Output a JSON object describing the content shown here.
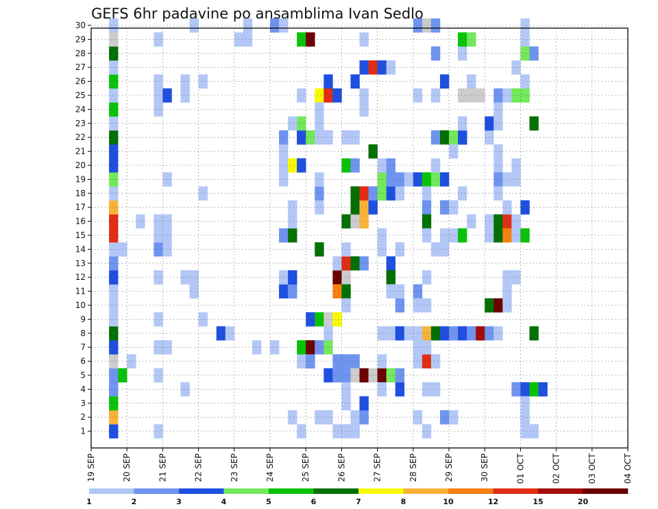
{
  "chart_data": {
    "type": "heatmap",
    "title": "GEFS 6hr padavine po ansamblima Ivan Sedlo",
    "xlabel": "",
    "ylabel": "",
    "x_tick_labels": [
      "19 SEP",
      "20 SEP",
      "21 SEP",
      "22 SEP",
      "23 SEP",
      "24 SEP",
      "25 SEP",
      "26 SEP",
      "27 SEP",
      "28 SEP",
      "29 SEP",
      "30 SEP",
      "01 OCT",
      "02 OCT",
      "03 OCT",
      "04 OCT"
    ],
    "y_tick_labels": [
      "1",
      "2",
      "3",
      "4",
      "5",
      "6",
      "7",
      "8",
      "9",
      "10",
      "11",
      "12",
      "13",
      "14",
      "15",
      "16",
      "17",
      "18",
      "19",
      "20",
      "21",
      "22",
      "23",
      "24",
      "25",
      "26",
      "27",
      "28",
      "29",
      "30"
    ],
    "grid": true,
    "legend": "colorbar-bottom",
    "x_columns": 60,
    "y_rows": 30,
    "colorbar": {
      "labels": [
        "1",
        "2",
        "3",
        "4",
        "5",
        "6",
        "7",
        "8",
        "10",
        "12",
        "15",
        "20"
      ],
      "colors": [
        "#b3c7f7",
        "#6f94ef",
        "#1e4fe0",
        "#72e85a",
        "#08c208",
        "#047004",
        "#f8f800",
        "#f8b23a",
        "#f88011",
        "#e02d14",
        "#a50b0b",
        "#6b0000"
      ]
    },
    "cells": [
      [
        2,
        1,
        3
      ],
      [
        2,
        2,
        8
      ],
      [
        2,
        3,
        5
      ],
      [
        2,
        4,
        2
      ],
      [
        2,
        5,
        2
      ],
      [
        3,
        5,
        5
      ],
      [
        2,
        6,
        13
      ],
      [
        2,
        7,
        3
      ],
      [
        2,
        8,
        6
      ],
      [
        2,
        9,
        1
      ],
      [
        2,
        10,
        1
      ],
      [
        2,
        11,
        1
      ],
      [
        2,
        12,
        3
      ],
      [
        2,
        13,
        2
      ],
      [
        2,
        14,
        1
      ],
      [
        3,
        14,
        1
      ],
      [
        2,
        15,
        10
      ],
      [
        2,
        16,
        10
      ],
      [
        2,
        17,
        8
      ],
      [
        2,
        18,
        1
      ],
      [
        2,
        19,
        4
      ],
      [
        2,
        20,
        3
      ],
      [
        2,
        21,
        3
      ],
      [
        2,
        22,
        6
      ],
      [
        2,
        23,
        1
      ],
      [
        2,
        24,
        5
      ],
      [
        2,
        25,
        1
      ],
      [
        2,
        26,
        5
      ],
      [
        2,
        27,
        1
      ],
      [
        2,
        28,
        6
      ],
      [
        2,
        29,
        13
      ],
      [
        2,
        30,
        1
      ],
      [
        5,
        16,
        1
      ],
      [
        4,
        6,
        1
      ],
      [
        7,
        1,
        1
      ],
      [
        7,
        5,
        1
      ],
      [
        7,
        7,
        1
      ],
      [
        8,
        7,
        1
      ],
      [
        7,
        9,
        1
      ],
      [
        7,
        12,
        1
      ],
      [
        7,
        14,
        2
      ],
      [
        8,
        14,
        1
      ],
      [
        7,
        15,
        1
      ],
      [
        8,
        15,
        1
      ],
      [
        7,
        16,
        1
      ],
      [
        8,
        16,
        1
      ],
      [
        8,
        19,
        1
      ],
      [
        7,
        24,
        1
      ],
      [
        7,
        25,
        1
      ],
      [
        8,
        25,
        3
      ],
      [
        7,
        26,
        1
      ],
      [
        7,
        29,
        1
      ],
      [
        10,
        4,
        1
      ],
      [
        10,
        12,
        1
      ],
      [
        11,
        12,
        1
      ],
      [
        11,
        11,
        1
      ],
      [
        10,
        25,
        1
      ],
      [
        10,
        26,
        1
      ],
      [
        12,
        9,
        1
      ],
      [
        12,
        18,
        1
      ],
      [
        12,
        26,
        1
      ],
      [
        11,
        30,
        1
      ],
      [
        14,
        8,
        3
      ],
      [
        15,
        8,
        1
      ],
      [
        18,
        7,
        1
      ],
      [
        17,
        29,
        1
      ],
      [
        20,
        7,
        1
      ],
      [
        21,
        11,
        3
      ],
      [
        22,
        11,
        2
      ],
      [
        21,
        12,
        1
      ],
      [
        22,
        12,
        3
      ],
      [
        21,
        15,
        2
      ],
      [
        22,
        15,
        6
      ],
      [
        22,
        16,
        1
      ],
      [
        21,
        19,
        1
      ],
      [
        21,
        20,
        1
      ],
      [
        22,
        20,
        7
      ],
      [
        23,
        20,
        3
      ],
      [
        21,
        21,
        1
      ],
      [
        21,
        22,
        2
      ],
      [
        23,
        22,
        3
      ],
      [
        22,
        23,
        1
      ],
      [
        16,
        29,
        1
      ],
      [
        17,
        30,
        1
      ],
      [
        20,
        30,
        2
      ],
      [
        21,
        30,
        1
      ],
      [
        23,
        29,
        5
      ],
      [
        24,
        29,
        12
      ],
      [
        23,
        1,
        1
      ],
      [
        22,
        17,
        1
      ],
      [
        22,
        2,
        1
      ],
      [
        23,
        6,
        1
      ],
      [
        23,
        20,
        3
      ],
      [
        24,
        6,
        2
      ],
      [
        23,
        7,
        5
      ],
      [
        24,
        7,
        12
      ],
      [
        24,
        6,
        2
      ],
      [
        24,
        9,
        3
      ],
      [
        25,
        9,
        5
      ],
      [
        26,
        9,
        13
      ],
      [
        27,
        9,
        7
      ],
      [
        25,
        7,
        2
      ],
      [
        26,
        7,
        4
      ],
      [
        26,
        5,
        3
      ],
      [
        27,
        5,
        2
      ],
      [
        25,
        2,
        1
      ],
      [
        26,
        2,
        1
      ],
      [
        25,
        14,
        6
      ],
      [
        26,
        8,
        1
      ],
      [
        23,
        22,
        3
      ],
      [
        24,
        22,
        4
      ],
      [
        25,
        22,
        1
      ],
      [
        26,
        22,
        1
      ],
      [
        23,
        23,
        4
      ],
      [
        25,
        23,
        1
      ],
      [
        23,
        25,
        1
      ],
      [
        25,
        25,
        7
      ],
      [
        26,
        25,
        10
      ],
      [
        27,
        25,
        3
      ],
      [
        26,
        26,
        3
      ],
      [
        25,
        24,
        1
      ],
      [
        25,
        17,
        1
      ],
      [
        25,
        18,
        2
      ],
      [
        25,
        19,
        1
      ],
      [
        27,
        12,
        12
      ],
      [
        28,
        12,
        13
      ],
      [
        27,
        13,
        1
      ],
      [
        28,
        13,
        10
      ],
      [
        29,
        13,
        6
      ],
      [
        30,
        13,
        2
      ],
      [
        28,
        14,
        1
      ],
      [
        27,
        11,
        9
      ],
      [
        28,
        11,
        6
      ],
      [
        28,
        10,
        1
      ],
      [
        27,
        6,
        2
      ],
      [
        28,
        6,
        2
      ],
      [
        29,
        6,
        2
      ],
      [
        28,
        5,
        2
      ],
      [
        29,
        5,
        13
      ],
      [
        30,
        5,
        12
      ],
      [
        31,
        5,
        13
      ],
      [
        32,
        5,
        12
      ],
      [
        33,
        5,
        4
      ],
      [
        28,
        4,
        1
      ],
      [
        28,
        3,
        1
      ],
      [
        29,
        2,
        1
      ],
      [
        30,
        2,
        2
      ],
      [
        29,
        1,
        1
      ],
      [
        28,
        1,
        1
      ],
      [
        27,
        1,
        1
      ],
      [
        30,
        3,
        3
      ],
      [
        28,
        16,
        6
      ],
      [
        29,
        16,
        13
      ],
      [
        30,
        16,
        8
      ],
      [
        29,
        17,
        6
      ],
      [
        30,
        17,
        8
      ],
      [
        31,
        17,
        3
      ],
      [
        29,
        18,
        6
      ],
      [
        30,
        18,
        10
      ],
      [
        31,
        18,
        2
      ],
      [
        32,
        18,
        4
      ],
      [
        33,
        18,
        3
      ],
      [
        34,
        18,
        1
      ],
      [
        28,
        20,
        5
      ],
      [
        29,
        20,
        2
      ],
      [
        28,
        22,
        1
      ],
      [
        29,
        22,
        1
      ],
      [
        29,
        26,
        3
      ],
      [
        30,
        27,
        3
      ],
      [
        31,
        27,
        10
      ],
      [
        32,
        27,
        3
      ],
      [
        33,
        27,
        1
      ],
      [
        30,
        24,
        1
      ],
      [
        30,
        25,
        1
      ],
      [
        30,
        29,
        1
      ],
      [
        31,
        21,
        6
      ],
      [
        32,
        19,
        4
      ],
      [
        33,
        19,
        2
      ],
      [
        34,
        19,
        2
      ],
      [
        32,
        20,
        1
      ],
      [
        33,
        20,
        2
      ],
      [
        33,
        13,
        3
      ],
      [
        33,
        12,
        6
      ],
      [
        33,
        11,
        1
      ],
      [
        32,
        8,
        1
      ],
      [
        33,
        8,
        1
      ],
      [
        34,
        8,
        3
      ],
      [
        35,
        8,
        1
      ],
      [
        32,
        4,
        1
      ],
      [
        34,
        4,
        3
      ],
      [
        34,
        5,
        2
      ],
      [
        32,
        6,
        1
      ],
      [
        34,
        10,
        2
      ],
      [
        33,
        12,
        6
      ],
      [
        32,
        15,
        1
      ],
      [
        32,
        14,
        1
      ],
      [
        33,
        11,
        1
      ],
      [
        34,
        11,
        1
      ],
      [
        35,
        19,
        1
      ],
      [
        36,
        19,
        3
      ],
      [
        37,
        19,
        5
      ],
      [
        38,
        19,
        4
      ],
      [
        39,
        19,
        3
      ],
      [
        37,
        18,
        1
      ],
      [
        37,
        17,
        2
      ],
      [
        37,
        16,
        6
      ],
      [
        39,
        17,
        2
      ],
      [
        37,
        15,
        1
      ],
      [
        39,
        15,
        1
      ],
      [
        36,
        8,
        1
      ],
      [
        37,
        8,
        8
      ],
      [
        38,
        8,
        6
      ],
      [
        39,
        8,
        3
      ],
      [
        40,
        8,
        2
      ],
      [
        41,
        8,
        3
      ],
      [
        42,
        8,
        2
      ],
      [
        43,
        8,
        11
      ],
      [
        44,
        8,
        2
      ],
      [
        45,
        8,
        1
      ],
      [
        36,
        6,
        1
      ],
      [
        37,
        6,
        10
      ],
      [
        38,
        6,
        1
      ],
      [
        36,
        7,
        1
      ],
      [
        37,
        7,
        1
      ],
      [
        36,
        11,
        2
      ],
      [
        36,
        10,
        1
      ],
      [
        37,
        10,
        1
      ],
      [
        36,
        2,
        1
      ],
      [
        39,
        2,
        2
      ],
      [
        40,
        2,
        1
      ],
      [
        37,
        1,
        1
      ],
      [
        36,
        25,
        1
      ],
      [
        37,
        30,
        13
      ],
      [
        38,
        30,
        2
      ],
      [
        36,
        30,
        2
      ],
      [
        38,
        28,
        2
      ],
      [
        39,
        26,
        3
      ],
      [
        38,
        25,
        1
      ],
      [
        38,
        22,
        2
      ],
      [
        39,
        22,
        6
      ],
      [
        40,
        22,
        4
      ],
      [
        41,
        22,
        3
      ],
      [
        40,
        22,
        4
      ],
      [
        42,
        25,
        13
      ],
      [
        43,
        25,
        13
      ],
      [
        41,
        25,
        13
      ],
      [
        42,
        26,
        1
      ],
      [
        41,
        28,
        1
      ],
      [
        41,
        29,
        5
      ],
      [
        42,
        29,
        4
      ],
      [
        40,
        21,
        1
      ],
      [
        40,
        17,
        1
      ],
      [
        40,
        15,
        1
      ],
      [
        41,
        15,
        5
      ],
      [
        41,
        22,
        3
      ],
      [
        41,
        18,
        1
      ],
      [
        41,
        23,
        1
      ],
      [
        38,
        20,
        1
      ],
      [
        37,
        4,
        1
      ],
      [
        38,
        4,
        1
      ],
      [
        37,
        12,
        1
      ],
      [
        38,
        14,
        1
      ],
      [
        39,
        14,
        1
      ],
      [
        34,
        14,
        1
      ],
      [
        42,
        16,
        1
      ],
      [
        44,
        16,
        1
      ],
      [
        45,
        16,
        6
      ],
      [
        46,
        16,
        10
      ],
      [
        44,
        15,
        1
      ],
      [
        45,
        15,
        6
      ],
      [
        46,
        15,
        9
      ],
      [
        47,
        15,
        1
      ],
      [
        48,
        15,
        5
      ],
      [
        44,
        10,
        6
      ],
      [
        45,
        10,
        12
      ],
      [
        46,
        10,
        1
      ],
      [
        46,
        11,
        1
      ],
      [
        45,
        20,
        1
      ],
      [
        45,
        21,
        1
      ],
      [
        44,
        22,
        1
      ],
      [
        44,
        23,
        3
      ],
      [
        45,
        23,
        1
      ],
      [
        45,
        24,
        1
      ],
      [
        45,
        25,
        2
      ],
      [
        46,
        25,
        1
      ],
      [
        47,
        25,
        4
      ],
      [
        48,
        25,
        4
      ],
      [
        48,
        26,
        1
      ],
      [
        47,
        27,
        1
      ],
      [
        48,
        28,
        4
      ],
      [
        49,
        28,
        2
      ],
      [
        48,
        29,
        1
      ],
      [
        49,
        23,
        6
      ],
      [
        48,
        30,
        1
      ],
      [
        45,
        19,
        2
      ],
      [
        46,
        19,
        1
      ],
      [
        45,
        18,
        1
      ],
      [
        48,
        17,
        3
      ],
      [
        49,
        8,
        6
      ],
      [
        47,
        4,
        2
      ],
      [
        48,
        4,
        3
      ],
      [
        49,
        4,
        5
      ],
      [
        50,
        4,
        3
      ],
      [
        48,
        3,
        1
      ],
      [
        48,
        1,
        1
      ],
      [
        49,
        1,
        1
      ],
      [
        48,
        2,
        1
      ],
      [
        46,
        11,
        1
      ],
      [
        46,
        12,
        1
      ],
      [
        47,
        12,
        1
      ],
      [
        47,
        19,
        1
      ],
      [
        47,
        20,
        1
      ],
      [
        47,
        16,
        1
      ],
      [
        46,
        17,
        1
      ]
    ]
  }
}
